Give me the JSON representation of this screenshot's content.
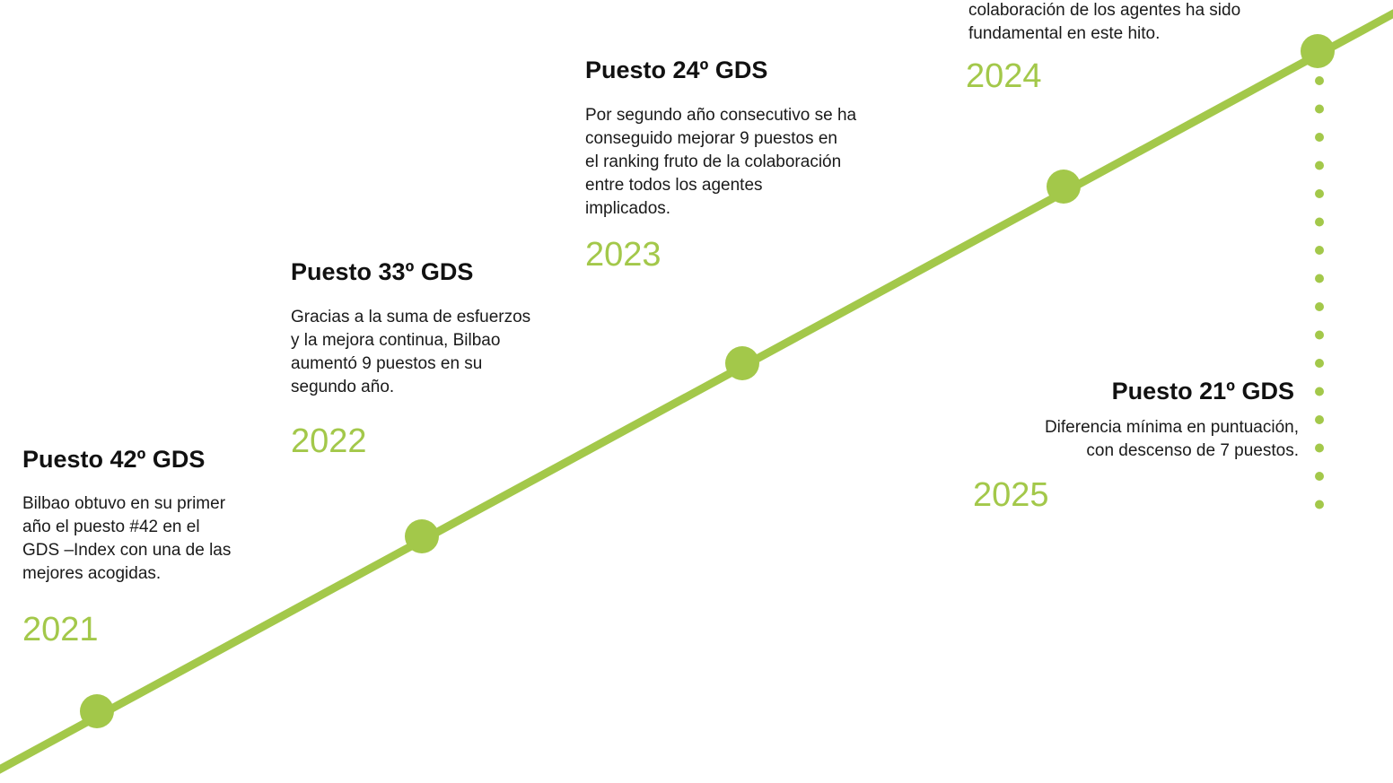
{
  "milestones": [
    {
      "title": "Puesto 42º GDS",
      "description": [
        "Bilbao obtuvo en su primer",
        "año el puesto #42 en el",
        "GDS –Index con una de las",
        "mejores acogidas."
      ],
      "year": "2021"
    },
    {
      "title": "Puesto 33º GDS",
      "description": [
        "Gracias a la suma de esfuerzos",
        "y la mejora continua, Bilbao",
        "aumentó 9 puestos en su",
        "segundo año."
      ],
      "year": "2022"
    },
    {
      "title": "Puesto 24º GDS",
      "description": [
        "Por segundo año consecutivo se ha",
        "conseguido mejorar 9 puestos en",
        "el ranking fruto de la colaboración",
        "entre todos los agentes",
        "implicados."
      ],
      "year": "2023"
    },
    {
      "description": [
        "colaboración de los agentes ha sido",
        "fundamental en este hito."
      ],
      "year": "2024"
    },
    {
      "title": "Puesto 21º GDS",
      "description": [
        "Diferencia mínima en puntuación,",
        "con descenso de 7 puestos."
      ],
      "year": "2025"
    }
  ]
}
